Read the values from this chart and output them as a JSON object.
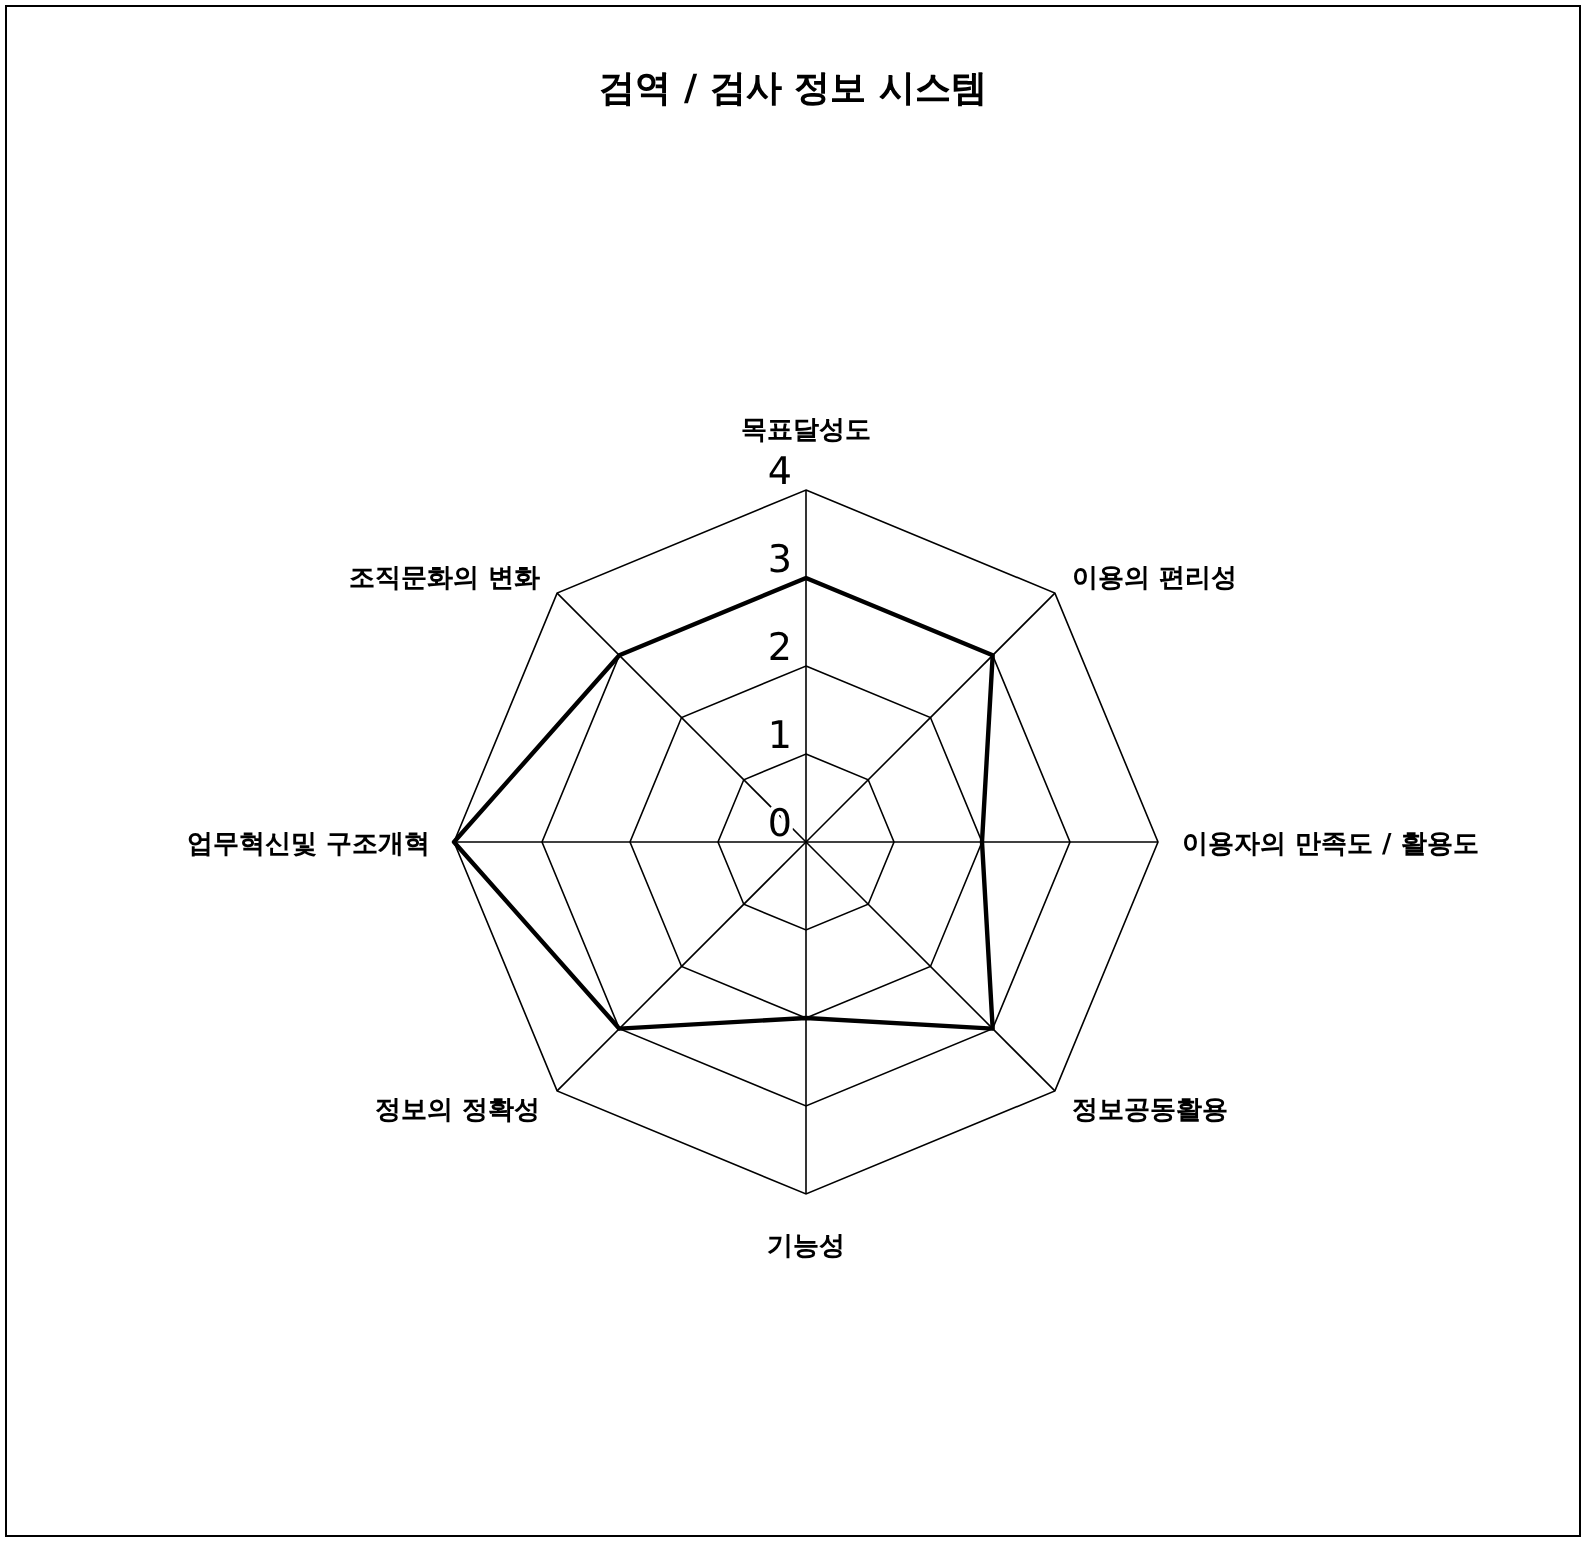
{
  "chart_data": {
    "type": "radar",
    "title": "검역 / 검사 정보 시스템",
    "categories": [
      "목표달성도",
      "이용의 편리성",
      "이용자의 만족도 / 활용도",
      "정보공동활용",
      "기능성",
      "정보의 정확성",
      "업무혁신및 구조개혁",
      "조직문화의 변화"
    ],
    "series": [
      {
        "color": "#000000",
        "values": [
          3,
          3,
          2,
          3,
          2,
          3,
          4,
          3
        ]
      }
    ],
    "ylim": [
      0,
      4
    ],
    "yticks": [
      0,
      1,
      2,
      3,
      4
    ],
    "grid": true
  }
}
